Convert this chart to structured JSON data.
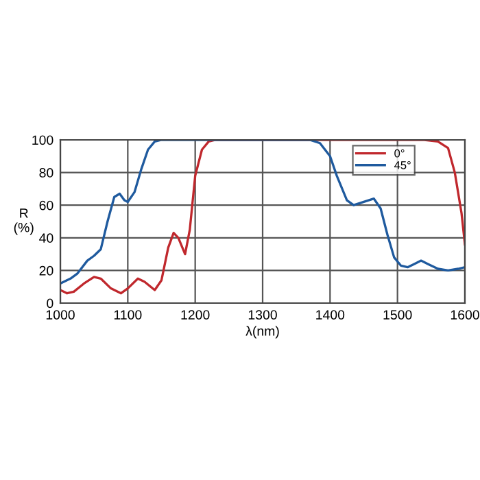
{
  "chart_data": {
    "type": "line",
    "xlabel": "λ(nm)",
    "ylabel": "R\n(%)",
    "xlim": [
      1000,
      1600
    ],
    "ylim": [
      0,
      100
    ],
    "xticks": [
      1000,
      1100,
      1200,
      1300,
      1400,
      1500,
      1600
    ],
    "yticks": [
      0,
      20,
      40,
      60,
      80,
      100
    ],
    "grid": true,
    "legend": "top right",
    "line_style": "solid",
    "series": [
      {
        "name": "0°",
        "color": "#c0282d",
        "x": [
          1000,
          1010,
          1020,
          1035,
          1050,
          1060,
          1075,
          1090,
          1100,
          1115,
          1125,
          1140,
          1150,
          1160,
          1168,
          1175,
          1185,
          1192,
          1200,
          1210,
          1220,
          1230,
          1300,
          1400,
          1500,
          1540,
          1560,
          1575,
          1585,
          1595,
          1600
        ],
        "values": [
          8,
          6,
          7,
          12,
          16,
          15,
          9,
          6,
          9,
          15,
          13,
          8,
          14,
          34,
          43,
          40,
          30,
          45,
          78,
          94,
          99,
          100,
          100,
          100,
          100,
          100,
          99,
          95,
          80,
          55,
          36
        ]
      },
      {
        "name": "45°",
        "color": "#1f5a9e",
        "x": [
          1000,
          1015,
          1025,
          1040,
          1050,
          1060,
          1070,
          1080,
          1088,
          1095,
          1100,
          1110,
          1120,
          1130,
          1140,
          1150,
          1250,
          1370,
          1385,
          1400,
          1410,
          1425,
          1435,
          1450,
          1465,
          1475,
          1485,
          1495,
          1505,
          1515,
          1525,
          1535,
          1545,
          1560,
          1575,
          1590,
          1600
        ],
        "values": [
          12,
          15,
          18,
          26,
          29,
          33,
          50,
          65,
          67,
          63,
          62,
          68,
          82,
          94,
          99,
          100,
          100,
          100,
          98,
          90,
          78,
          63,
          60,
          62,
          64,
          58,
          42,
          28,
          23,
          22,
          24,
          26,
          24,
          21,
          20,
          21,
          22
        ]
      }
    ]
  }
}
